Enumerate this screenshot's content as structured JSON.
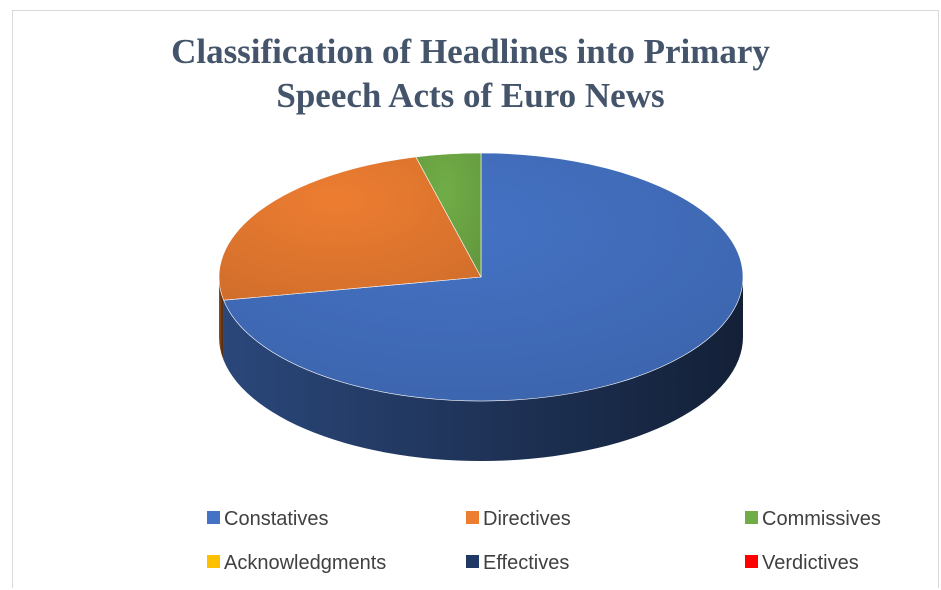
{
  "chart_data": {
    "type": "pie",
    "title": "Classification of Headlines into Primary Speech Acts of Euro News",
    "title_lines": [
      "Classification of Headlines into Primary",
      "Speech Acts of Euro News"
    ],
    "categories": [
      "Constatives",
      "Directives",
      "Commissives",
      "Acknowledgments",
      "Effectives",
      "Verdictives"
    ],
    "values": [
      72,
      24,
      4,
      0,
      0,
      0
    ],
    "colors": [
      "#4472c4",
      "#ed7d31",
      "#70ad47",
      "#ffc000",
      "#1f3864",
      "#ff0000"
    ],
    "legend_position": "bottom",
    "style": "3d"
  }
}
